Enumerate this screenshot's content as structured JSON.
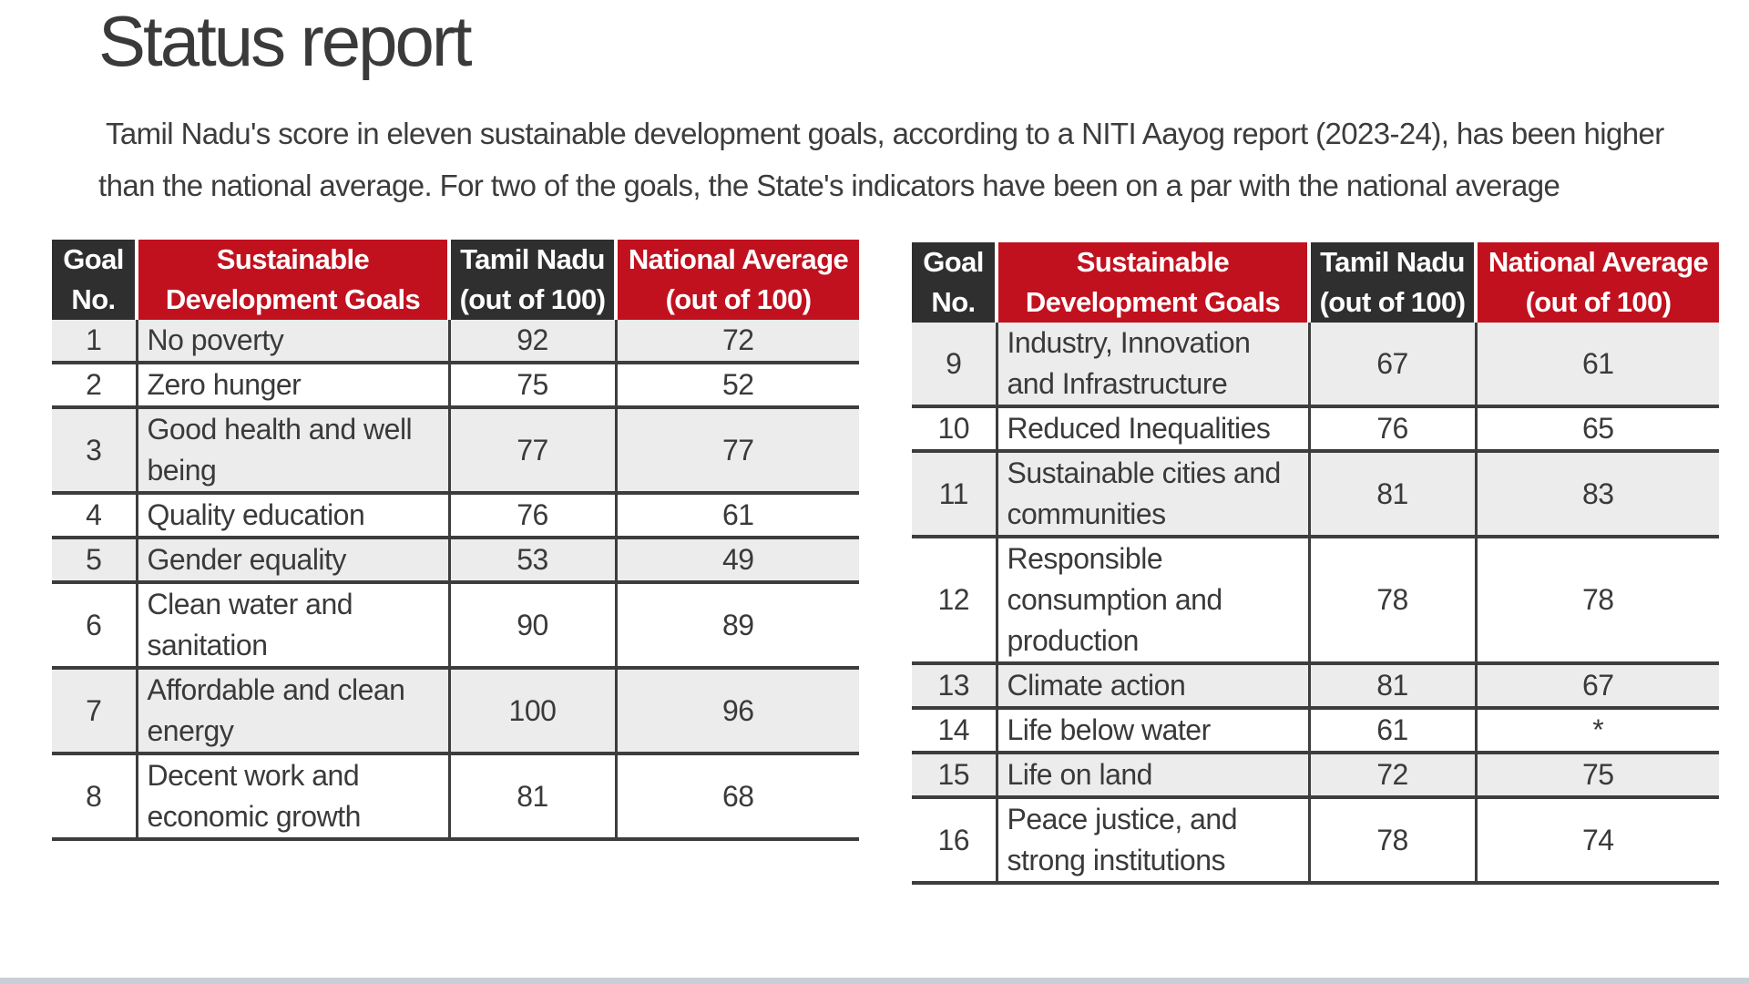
{
  "title": "Status report",
  "intro": {
    "line1": "Tamil Nadu's score in eleven sustainable development goals,  according to a NITI Aayog report (2023-24), has been higher",
    "line2": "than the national average. For two of the goals, the State's  indicators have been on a par with the national average"
  },
  "colors": {
    "header_dark": "#2f2f2f",
    "header_red": "#c1111f",
    "row_shade": "#ececec"
  },
  "table_headers": {
    "goal_no": [
      "Goal",
      "No."
    ],
    "sdg": [
      "Sustainable",
      "Development Goals"
    ],
    "tamil_nadu": [
      "Tamil Nadu",
      "(out of 100)"
    ],
    "national": [
      "National Average",
      "(out of 100)"
    ]
  },
  "tables": [
    {
      "rows": [
        {
          "no": "1",
          "lines": [
            "No poverty"
          ],
          "tn": "92",
          "nat": "72",
          "shade": true
        },
        {
          "no": "2",
          "lines": [
            "Zero hunger"
          ],
          "tn": "75",
          "nat": "52",
          "shade": false
        },
        {
          "no": "3",
          "lines": [
            "Good health and well",
            "being"
          ],
          "tn": "77",
          "nat": "77",
          "shade": true
        },
        {
          "no": "4",
          "lines": [
            "Quality education"
          ],
          "tn": "76",
          "nat": "61",
          "shade": false
        },
        {
          "no": "5",
          "lines": [
            "Gender equality"
          ],
          "tn": "53",
          "nat": "49",
          "shade": true
        },
        {
          "no": "6",
          "lines": [
            "Clean water and",
            "sanitation"
          ],
          "tn": "90",
          "nat": "89",
          "shade": false
        },
        {
          "no": "7",
          "lines": [
            "Affordable and clean",
            "energy"
          ],
          "tn": "100",
          "nat": "96",
          "shade": true
        },
        {
          "no": "8",
          "lines": [
            "Decent work and",
            "economic growth"
          ],
          "tn": "81",
          "nat": "68",
          "shade": false
        }
      ]
    },
    {
      "rows": [
        {
          "no": "9",
          "lines": [
            "Industry, Innovation",
            "and Infrastructure"
          ],
          "tn": "67",
          "nat": "61",
          "shade": true
        },
        {
          "no": "10",
          "lines": [
            "Reduced Inequalities"
          ],
          "tn": "76",
          "nat": "65",
          "shade": false
        },
        {
          "no": "11",
          "lines": [
            "Sustainable cities and",
            "communities"
          ],
          "tn": "81",
          "nat": "83",
          "shade": true
        },
        {
          "no": "12",
          "lines": [
            "Responsible",
            "consumption and",
            "production"
          ],
          "tn": "78",
          "nat": "78",
          "shade": false
        },
        {
          "no": "13",
          "lines": [
            "Climate action"
          ],
          "tn": "81",
          "nat": "67",
          "shade": true
        },
        {
          "no": "14",
          "lines": [
            "Life below water"
          ],
          "tn": "61",
          "nat": "*",
          "shade": false
        },
        {
          "no": "15",
          "lines": [
            "Life on land"
          ],
          "tn": "72",
          "nat": "75",
          "shade": true
        },
        {
          "no": "16",
          "lines": [
            "Peace justice, and",
            "strong institutions"
          ],
          "tn": "78",
          "nat": "74",
          "shade": false
        }
      ]
    }
  ]
}
